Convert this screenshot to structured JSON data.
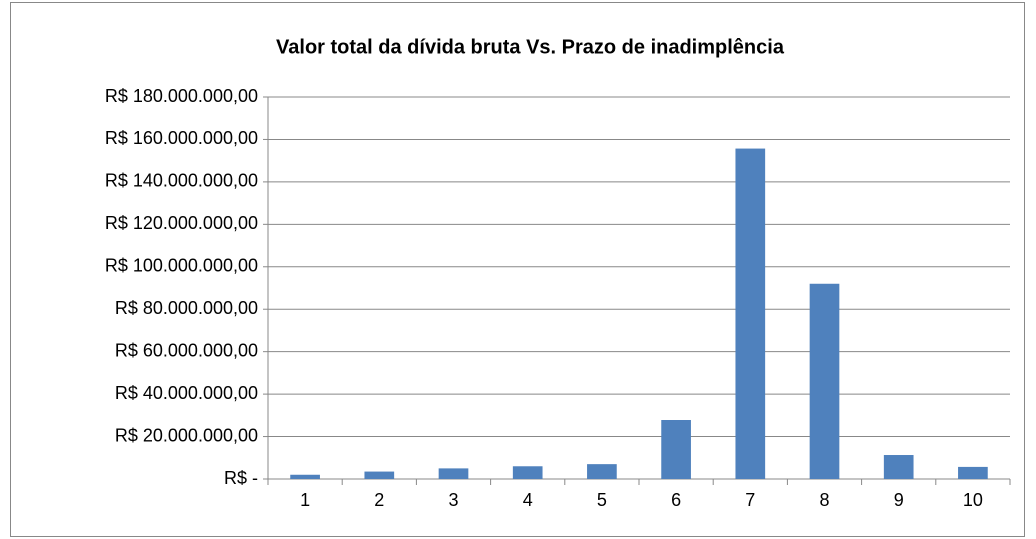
{
  "chart_data": {
    "type": "bar",
    "title": "Valor total da dívida bruta Vs. Prazo de inadimplência",
    "categories": [
      "1",
      "2",
      "3",
      "4",
      "5",
      "6",
      "7",
      "8",
      "9",
      "10"
    ],
    "values": [
      2000000,
      3500000,
      5000000,
      6000000,
      7000000,
      27800000,
      155700000,
      92000000,
      11300000,
      5700000
    ],
    "color": "#4f81bd",
    "ylim": [
      0,
      180000000
    ],
    "yticks": [
      {
        "value": 0,
        "label": "R$ -"
      },
      {
        "value": 20000000,
        "label": "R$ 20.000.000,00"
      },
      {
        "value": 40000000,
        "label": "R$ 40.000.000,00"
      },
      {
        "value": 60000000,
        "label": "R$ 60.000.000,00"
      },
      {
        "value": 80000000,
        "label": "R$ 80.000.000,00"
      },
      {
        "value": 100000000,
        "label": "R$ 100.000.000,00"
      },
      {
        "value": 120000000,
        "label": "R$ 120.000.000,00"
      },
      {
        "value": 140000000,
        "label": "R$ 140.000.000,00"
      },
      {
        "value": 160000000,
        "label": "R$ 160.000.000,00"
      },
      {
        "value": 180000000,
        "label": "R$ 180.000.000,00"
      }
    ],
    "grid": true
  }
}
